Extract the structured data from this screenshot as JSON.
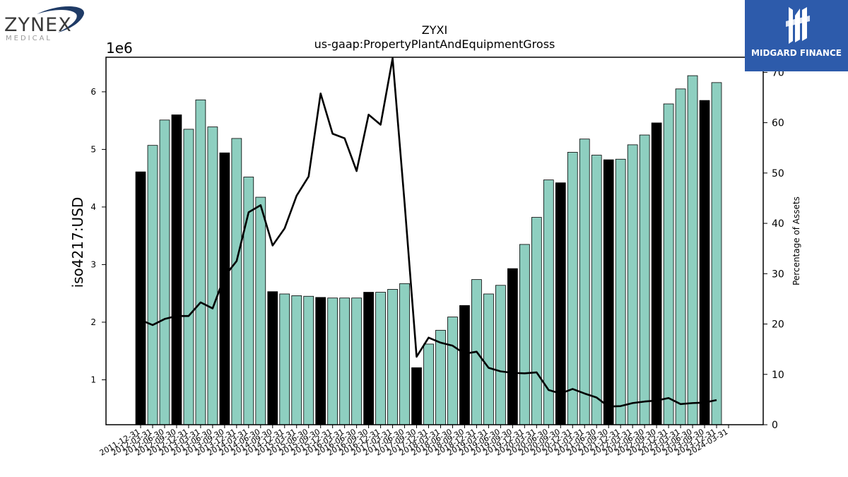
{
  "logos": {
    "left_word": "ZYNEX",
    "left_sub": "MEDICAL",
    "right_name": "MIDGARD FINANCE",
    "right_color": "#2d5bab"
  },
  "chart_data": {
    "type": "bar",
    "title": "ZYXI",
    "subtitle": "us-gaap:PropertyPlantAndEquipmentGross",
    "ylabel": "iso4217:USD",
    "y_multiplier_label": "1e6",
    "y2label": "Percentage of Assets",
    "ylim": [
      0.22,
      6.6
    ],
    "y2lim": [
      0,
      73
    ],
    "y_ticks": [
      1,
      2,
      3,
      4,
      5,
      6
    ],
    "y2_ticks": [
      0,
      10,
      20,
      30,
      40,
      50,
      60,
      70
    ],
    "bar_color_default": "#8ecfc0",
    "bar_color_fiscal_year_end": "#000000",
    "categories": [
      "2011-12-31",
      "2012-03-31",
      "2012-06-30",
      "2012-09-30",
      "2012-12-31",
      "2013-03-31",
      "2013-06-30",
      "2013-09-30",
      "2013-12-31",
      "2014-03-31",
      "2014-06-30",
      "2014-09-30",
      "2014-12-31",
      "2015-03-31",
      "2015-06-30",
      "2015-09-30",
      "2015-12-31",
      "2016-03-31",
      "2016-06-30",
      "2016-09-30",
      "2016-12-31",
      "2017-03-31",
      "2017-06-30",
      "2017-09-30",
      "2017-12-31",
      "2018-03-31",
      "2018-06-30",
      "2018-09-30",
      "2018-12-31",
      "2019-03-31",
      "2019-06-30",
      "2019-09-30",
      "2019-12-31",
      "2020-03-31",
      "2020-06-30",
      "2020-09-30",
      "2020-12-31",
      "2021-03-31",
      "2021-06-30",
      "2021-09-30",
      "2021-12-31",
      "2022-03-31",
      "2022-06-30",
      "2022-09-30",
      "2022-12-31",
      "2023-03-31",
      "2023-06-30",
      "2023-09-30",
      "2023-12-31",
      "2024-03-31"
    ],
    "values": [
      4.61,
      5.07,
      5.51,
      5.6,
      5.35,
      5.86,
      5.39,
      4.94,
      5.19,
      4.52,
      4.17,
      2.53,
      2.49,
      2.46,
      2.45,
      2.43,
      2.42,
      2.42,
      2.42,
      2.52,
      2.52,
      2.57,
      2.67,
      1.21,
      1.62,
      1.86,
      2.09,
      2.29,
      2.74,
      2.49,
      2.64,
      2.93,
      3.35,
      3.82,
      4.47,
      4.42,
      4.95,
      5.18,
      4.9,
      4.82,
      4.83,
      5.08,
      5.25,
      5.46,
      5.79,
      6.05,
      6.28,
      5.85,
      6.16,
      0
    ],
    "fiscal_year_end": [
      true,
      false,
      false,
      true,
      false,
      false,
      false,
      true,
      false,
      false,
      false,
      true,
      false,
      false,
      false,
      true,
      false,
      false,
      false,
      true,
      false,
      false,
      false,
      true,
      false,
      false,
      false,
      true,
      false,
      false,
      false,
      true,
      false,
      false,
      false,
      true,
      false,
      false,
      false,
      true,
      false,
      false,
      false,
      true,
      false,
      false,
      false,
      true,
      false,
      false
    ],
    "series": [
      {
        "type": "line",
        "axis": "right",
        "color": "#000000",
        "values": [
          20.8,
          19.8,
          21.0,
          21.6,
          21.6,
          24.3,
          23.1,
          29.5,
          32.5,
          42.2,
          43.6,
          35.6,
          39.0,
          45.5,
          49.3,
          65.8,
          57.8,
          56.9,
          50.4,
          61.6,
          59.6,
          72.8,
          44.0,
          13.5,
          17.3,
          16.3,
          15.7,
          14.1,
          14.5,
          11.3,
          10.6,
          10.3,
          10.2,
          10.4,
          6.9,
          6.2,
          7.1,
          6.2,
          5.4,
          3.6,
          3.7,
          4.3,
          4.6,
          4.8,
          5.3,
          4.1,
          4.3,
          4.4,
          4.9,
          null
        ]
      }
    ]
  }
}
